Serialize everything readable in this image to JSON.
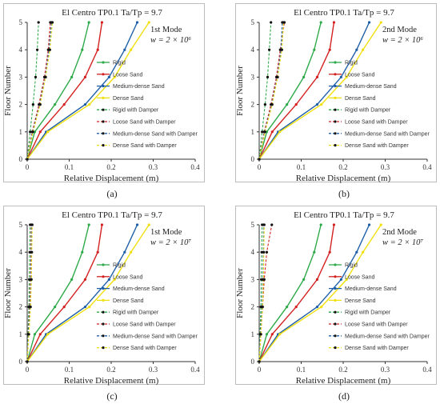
{
  "chart_data": [
    {
      "type": "line",
      "caption": "(a)",
      "title": "El Centro TP0.1   Ta/Tp = 9.7",
      "mode": "1st Mode",
      "stiffness": "w = 2 × 10⁶",
      "xlabel": "Relative Displacement (m)",
      "ylabel": "Floor Number",
      "xlim": [
        0,
        0.4
      ],
      "ylim": [
        0,
        5
      ],
      "xticks": [
        "0",
        "0.1",
        "0.2",
        "0.3",
        "0.4"
      ],
      "yticks": [
        "0",
        "1",
        "2",
        "3",
        "4",
        "5"
      ],
      "y": [
        0,
        1,
        2,
        3,
        4,
        5
      ],
      "series": [
        {
          "name": "Rigid",
          "color": "#2eaa4a",
          "style": "solid",
          "values": [
            0,
            0.018,
            0.066,
            0.106,
            0.131,
            0.147
          ]
        },
        {
          "name": "Loose Sand",
          "color": "#d42020",
          "style": "solid",
          "values": [
            0,
            0.031,
            0.088,
            0.138,
            0.168,
            0.178
          ]
        },
        {
          "name": "Medium-dense Sand",
          "color": "#1f5fa8",
          "style": "solid",
          "values": [
            0,
            0.045,
            0.138,
            0.195,
            0.232,
            0.262
          ]
        },
        {
          "name": "Dense Sand",
          "color": "#f0e010",
          "style": "solid",
          "values": [
            0,
            0.049,
            0.148,
            0.208,
            0.247,
            0.29
          ]
        },
        {
          "name": "Rigid with Damper",
          "color": "#2eaa4a",
          "style": "dashed",
          "values": [
            0,
            0.007,
            0.014,
            0.02,
            0.024,
            0.027
          ]
        },
        {
          "name": "Loose Sand with Damper",
          "color": "#d42020",
          "style": "dashed",
          "values": [
            0,
            0.012,
            0.028,
            0.041,
            0.05,
            0.055
          ]
        },
        {
          "name": "Medium-dense Sand with Damper",
          "color": "#1f5fa8",
          "style": "dashed",
          "values": [
            0,
            0.013,
            0.03,
            0.043,
            0.052,
            0.058
          ]
        },
        {
          "name": "Dense Sand with Damper",
          "color": "#f0e010",
          "style": "dashed",
          "values": [
            0,
            0.014,
            0.031,
            0.044,
            0.054,
            0.06
          ]
        }
      ]
    },
    {
      "type": "line",
      "caption": "(b)",
      "title": "El Centro TP0.1   Ta/Tp = 9.7",
      "mode": "2nd Mode",
      "stiffness": "w = 2 × 10⁶",
      "xlabel": "Relative Displacement (m)",
      "ylabel": "Floor Number",
      "xlim": [
        0,
        0.4
      ],
      "ylim": [
        0,
        5
      ],
      "xticks": [
        "0",
        "0.1",
        "0.2",
        "0.3",
        "0.4"
      ],
      "yticks": [
        "0",
        "1",
        "2",
        "3",
        "4",
        "5"
      ],
      "y": [
        0,
        1,
        2,
        3,
        4,
        5
      ],
      "series": [
        {
          "name": "Rigid",
          "color": "#2eaa4a",
          "style": "solid",
          "values": [
            0,
            0.018,
            0.066,
            0.106,
            0.131,
            0.147
          ]
        },
        {
          "name": "Loose Sand",
          "color": "#d42020",
          "style": "solid",
          "values": [
            0,
            0.031,
            0.088,
            0.138,
            0.168,
            0.178
          ]
        },
        {
          "name": "Medium-dense Sand",
          "color": "#1f5fa8",
          "style": "solid",
          "values": [
            0,
            0.045,
            0.138,
            0.195,
            0.232,
            0.262
          ]
        },
        {
          "name": "Dense Sand",
          "color": "#f0e010",
          "style": "solid",
          "values": [
            0,
            0.049,
            0.148,
            0.208,
            0.247,
            0.29
          ]
        },
        {
          "name": "Rigid with Damper",
          "color": "#2eaa4a",
          "style": "dashed",
          "values": [
            0,
            0.007,
            0.014,
            0.02,
            0.024,
            0.028
          ]
        },
        {
          "name": "Loose Sand with Damper",
          "color": "#d42020",
          "style": "dashed",
          "values": [
            0,
            0.012,
            0.028,
            0.041,
            0.05,
            0.06
          ]
        },
        {
          "name": "Medium-dense Sand with Damper",
          "color": "#1f5fa8",
          "style": "dashed",
          "values": [
            0,
            0.013,
            0.03,
            0.043,
            0.052,
            0.055
          ]
        },
        {
          "name": "Dense Sand with Damper",
          "color": "#f0e010",
          "style": "dashed",
          "values": [
            0,
            0.014,
            0.031,
            0.044,
            0.054,
            0.058
          ]
        }
      ]
    },
    {
      "type": "line",
      "caption": "(c)",
      "title": "El Centro TP0.1   Ta/Tp = 9.7",
      "mode": "1st Mode",
      "stiffness": "w = 2 × 10⁷",
      "xlabel": "Relative Displacement (m)",
      "ylabel": "Floor Number",
      "xlim": [
        0,
        0.4
      ],
      "ylim": [
        0,
        5
      ],
      "xticks": [
        "0",
        "0.1",
        "0.2",
        "0.3",
        "0.4"
      ],
      "yticks": [
        "0",
        "1",
        "2",
        "3",
        "4",
        "5"
      ],
      "y": [
        0,
        1,
        2,
        3,
        4,
        5
      ],
      "series": [
        {
          "name": "Rigid",
          "color": "#2eaa4a",
          "style": "solid",
          "values": [
            0,
            0.018,
            0.066,
            0.106,
            0.131,
            0.147
          ]
        },
        {
          "name": "Loose Sand",
          "color": "#d42020",
          "style": "solid",
          "values": [
            0,
            0.031,
            0.088,
            0.138,
            0.168,
            0.178
          ]
        },
        {
          "name": "Medium-dense Sand",
          "color": "#1f5fa8",
          "style": "solid",
          "values": [
            0,
            0.045,
            0.138,
            0.195,
            0.232,
            0.262
          ]
        },
        {
          "name": "Dense Sand",
          "color": "#f0e010",
          "style": "solid",
          "values": [
            0,
            0.049,
            0.148,
            0.208,
            0.247,
            0.29
          ]
        },
        {
          "name": "Rigid with Damper",
          "color": "#2eaa4a",
          "style": "dashed",
          "values": [
            0,
            0.002,
            0.004,
            0.005,
            0.006,
            0.007
          ]
        },
        {
          "name": "Loose Sand with Damper",
          "color": "#d42020",
          "style": "dashed",
          "values": [
            0,
            0.003,
            0.006,
            0.008,
            0.009,
            0.01
          ]
        },
        {
          "name": "Medium-dense Sand with Damper",
          "color": "#1f5fa8",
          "style": "dashed",
          "values": [
            0,
            0.003,
            0.007,
            0.009,
            0.01,
            0.011
          ]
        },
        {
          "name": "Dense Sand with Damper",
          "color": "#f0e010",
          "style": "dashed",
          "values": [
            0,
            0.004,
            0.008,
            0.01,
            0.011,
            0.012
          ]
        }
      ]
    },
    {
      "type": "line",
      "caption": "(d)",
      "title": "El Centro TP0.1   Ta/Tp = 9.7",
      "mode": "2nd Mode",
      "stiffness": "w = 2 × 10⁷",
      "xlabel": "Relative Displacement (m)",
      "ylabel": "Floor Number",
      "xlim": [
        0,
        0.4
      ],
      "ylim": [
        0,
        5
      ],
      "xticks": [
        "0",
        "0.1",
        "0.2",
        "0.3",
        "0.4"
      ],
      "yticks": [
        "0",
        "1",
        "2",
        "3",
        "4",
        "5"
      ],
      "y": [
        0,
        1,
        2,
        3,
        4,
        5
      ],
      "series": [
        {
          "name": "Rigid",
          "color": "#2eaa4a",
          "style": "solid",
          "values": [
            0,
            0.018,
            0.066,
            0.106,
            0.131,
            0.147
          ]
        },
        {
          "name": "Loose Sand",
          "color": "#d42020",
          "style": "solid",
          "values": [
            0,
            0.031,
            0.088,
            0.138,
            0.168,
            0.178
          ]
        },
        {
          "name": "Medium-dense Sand",
          "color": "#1f5fa8",
          "style": "solid",
          "values": [
            0,
            0.045,
            0.138,
            0.195,
            0.232,
            0.262
          ]
        },
        {
          "name": "Dense Sand",
          "color": "#f0e010",
          "style": "solid",
          "values": [
            0,
            0.049,
            0.148,
            0.208,
            0.247,
            0.29
          ]
        },
        {
          "name": "Rigid with Damper",
          "color": "#2eaa4a",
          "style": "dashed",
          "values": [
            0,
            0.002,
            0.004,
            0.005,
            0.006,
            0.007
          ]
        },
        {
          "name": "Loose Sand with Damper",
          "color": "#d42020",
          "style": "dashed",
          "values": [
            0,
            0.004,
            0.008,
            0.012,
            0.018,
            0.03
          ]
        },
        {
          "name": "Medium-dense Sand with Damper",
          "color": "#1f5fa8",
          "style": "dashed",
          "values": [
            0,
            0.003,
            0.007,
            0.009,
            0.01,
            0.011
          ]
        },
        {
          "name": "Dense Sand with Damper",
          "color": "#f0e010",
          "style": "dashed",
          "values": [
            0,
            0.004,
            0.008,
            0.01,
            0.011,
            0.012
          ]
        }
      ]
    }
  ]
}
